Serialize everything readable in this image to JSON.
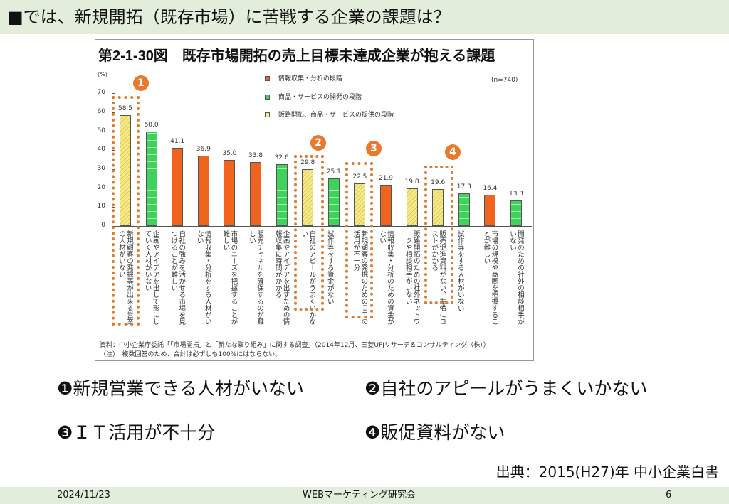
{
  "header": {
    "title": "■では、新規開拓（既存市場）に苦戦する企業の課題は？"
  },
  "chart_data": {
    "type": "bar",
    "title": "第2-1-30図　既存市場開拓の売上目標未達成企業が抱える課題",
    "ylabel": "(%)",
    "ylim": [
      0,
      70
    ],
    "yticks": [
      0,
      10,
      20,
      30,
      40,
      50,
      60,
      70
    ],
    "n_label": "(n=740)",
    "legend": [
      {
        "name": "情報収集・分析の段階",
        "color": "#f0641e"
      },
      {
        "name": "商品・サービスの開発の段階",
        "color": "#3ed35a"
      },
      {
        "name": "販路開拓、商品・サービスの提供の段階",
        "color": "#f8ea8a"
      }
    ],
    "categories": [
      "新規顧客の発掘等が出来る営業の人材がいない",
      "企画やアイデアを出して形にしていく人材がいない",
      "自社の強みを活かせる市場を見つけることが難しい",
      "情報収集・分析をする人材がいない",
      "市場のニーズを把握することが難しい",
      "販売チャネルを確保するのが難しい",
      "企画やアイデアを出すための情報収集に時間がかかる",
      "自社のアピールがうまくいかない",
      "試作等をする資金がない",
      "新規顧客の発掘のためのＩＴの活用が不十分",
      "情報収集・分析のための資金がない",
      "販路開拓のための社外ネットワークや相談相手がいない",
      "販売促進資料がない、準備にコストがかかる",
      "試作等をする人材がいない",
      "市場の規模や商圏を把握することが難しい",
      "開発のための社外の相談相手がいない"
    ],
    "values": [
      58.5,
      50.0,
      41.1,
      36.9,
      35.0,
      33.8,
      32.6,
      29.8,
      25.1,
      22.5,
      21.9,
      19.8,
      19.6,
      17.3,
      16.4,
      13.3
    ],
    "value_labels": [
      "58.5",
      "50.0",
      "41.1",
      "36.9",
      "35.0",
      "33.8",
      "32.6",
      "29.8",
      "25.1",
      "22.5",
      "21.9",
      "19.8",
      "19.6",
      "17.3",
      "16.4",
      "13.3"
    ],
    "series_index": [
      2,
      1,
      0,
      0,
      0,
      0,
      1,
      2,
      1,
      2,
      0,
      2,
      2,
      1,
      0,
      1
    ],
    "highlights": [
      {
        "num": "1",
        "bar": 0
      },
      {
        "num": "2",
        "bar": 7
      },
      {
        "num": "3",
        "bar": 9
      },
      {
        "num": "4",
        "bar": 12
      }
    ],
    "source": "資料：中小企業庁委託「「市場開拓」と「新たな取り組み」に関する調査」（2014年12月、三菱UFJリサーチ＆コンサルティング（株））",
    "note": "（注）　複数回答のため、合計は必ずしも100%にはならない。"
  },
  "points": [
    "❶新規営業できる人材がいない",
    "❷自社のアピールがうまくいかない",
    "❸ＩＴ活用が不十分",
    "❹販促資料がない"
  ],
  "citation": "出典：2015(H27)年 中小企業白書",
  "footer": {
    "date": "2024/11/23",
    "org": "WEBマーケティング研究会",
    "page": "6"
  }
}
